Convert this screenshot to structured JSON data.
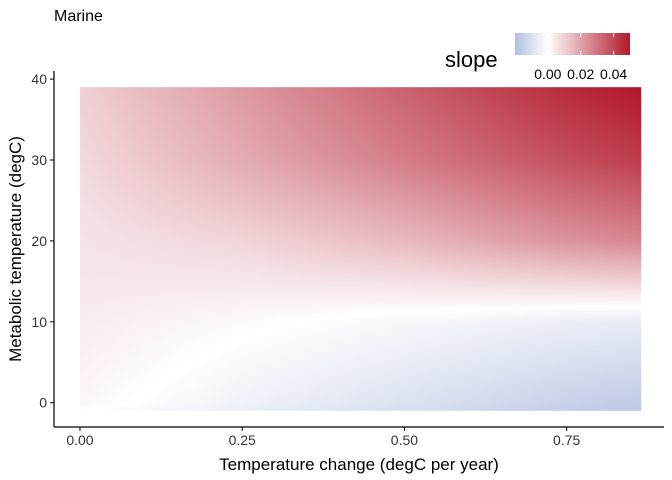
{
  "chart_data": {
    "type": "heatmap",
    "title": "Marine",
    "xlabel": "Temperature change (degC per year)",
    "ylabel": "Metabolic temperature (degC)",
    "x_range": [
      0,
      0.865
    ],
    "y_range": [
      -1,
      39
    ],
    "xlim": [
      -0.04,
      0.9
    ],
    "ylim": [
      -3,
      41
    ],
    "x_ticks": [
      0,
      0.25,
      0.5,
      0.75
    ],
    "x_tick_labels": [
      "0.00",
      "0.25",
      "0.50",
      "0.75"
    ],
    "y_ticks": [
      0,
      10,
      20,
      30,
      40
    ],
    "y_tick_labels": [
      "0",
      "10",
      "20",
      "30",
      "40"
    ],
    "legend": {
      "title": "slope",
      "position": "top-right",
      "range": [
        -0.02,
        0.05
      ],
      "ticks": [
        0,
        0.02,
        0.04
      ],
      "tick_labels": [
        "0.00",
        "0.02",
        "0.04"
      ],
      "low_color": "#b2bfe0",
      "mid_color": "#ffffff",
      "high_color": "#b2182b"
    },
    "surface_samples": {
      "x": [
        0.0,
        0.25,
        0.5,
        0.75,
        0.865
      ],
      "y": [
        -1,
        0,
        10,
        20,
        30,
        39
      ],
      "z": [
        [
          0.0,
          -0.005,
          -0.01,
          -0.015,
          -0.017
        ],
        [
          0.002,
          -0.004,
          -0.009,
          -0.014,
          -0.016
        ],
        [
          0.004,
          0.001,
          -0.002,
          -0.005,
          -0.006
        ],
        [
          0.006,
          0.009,
          0.015,
          0.023,
          0.026
        ],
        [
          0.008,
          0.018,
          0.028,
          0.038,
          0.042
        ],
        [
          0.01,
          0.022,
          0.034,
          0.046,
          0.05
        ]
      ]
    },
    "grid": false
  }
}
